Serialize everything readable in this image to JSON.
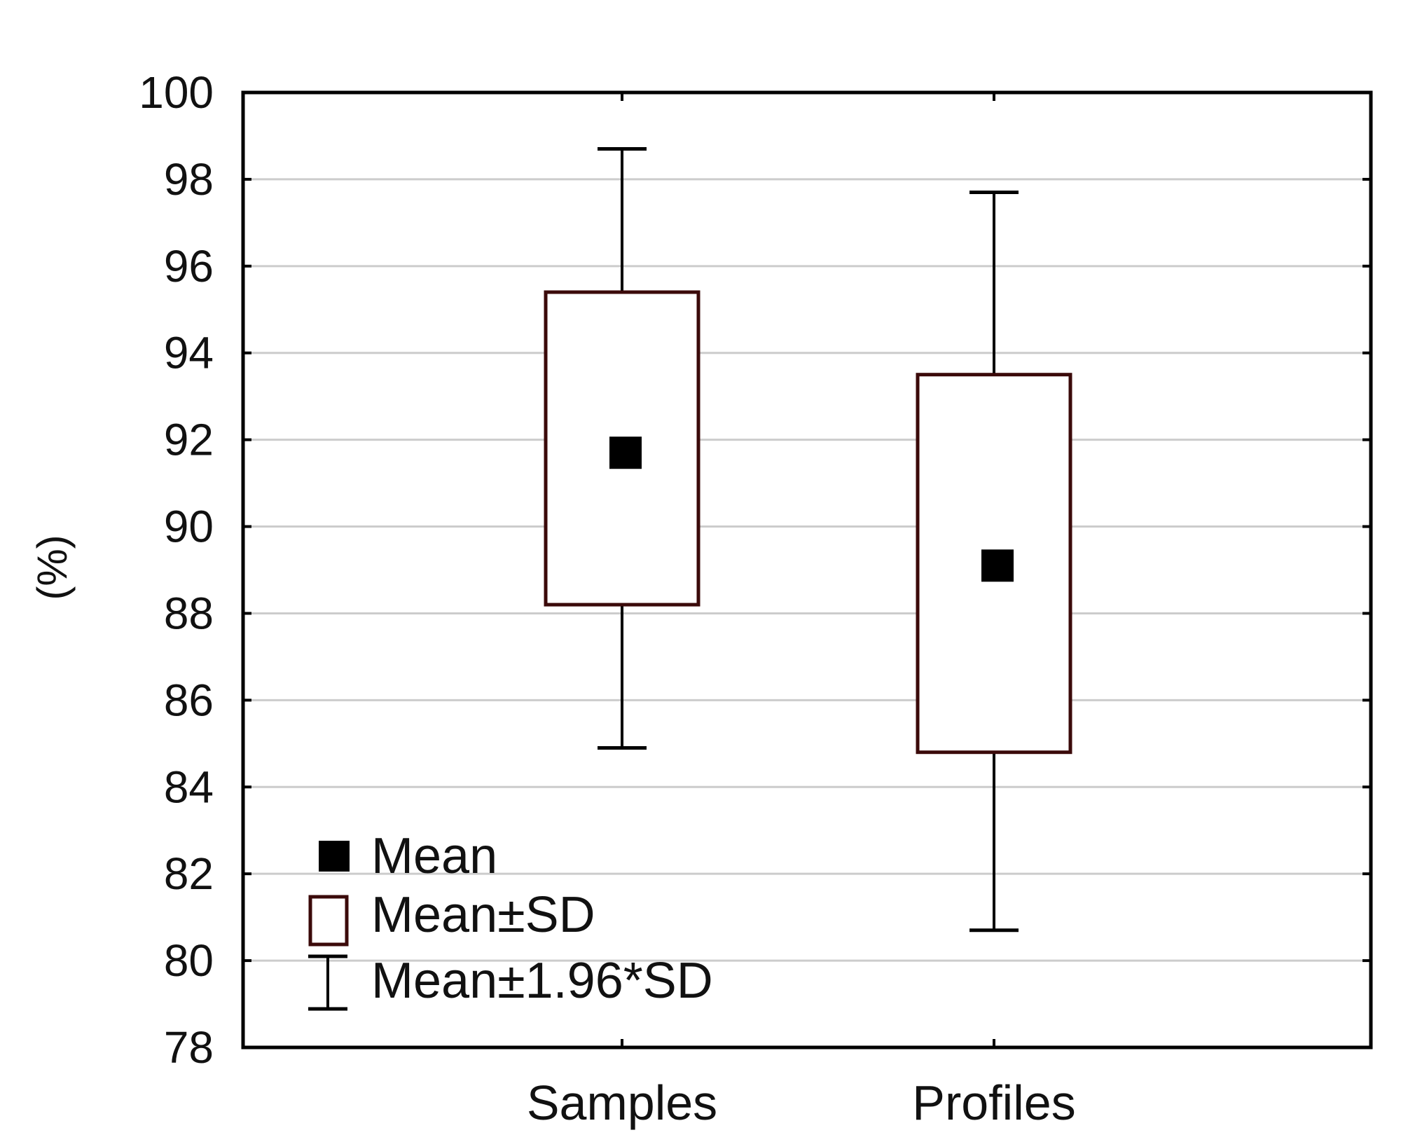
{
  "chart_data": {
    "type": "box",
    "title": "",
    "xlabel": "",
    "ylabel": "(%)",
    "ylim": [
      78,
      100
    ],
    "yticks": [
      78,
      80,
      82,
      84,
      86,
      88,
      90,
      92,
      94,
      96,
      98,
      100
    ],
    "grid": true,
    "legend_position": "bottom-left",
    "categories": [
      "Samples",
      "Profiles"
    ],
    "series": [
      {
        "name": "Samples",
        "mean": 91.7,
        "sd_low": 88.2,
        "sd_high": 95.4,
        "whisker_low": 84.9,
        "whisker_high": 98.7
      },
      {
        "name": "Profiles",
        "mean": 89.1,
        "sd_low": 84.8,
        "sd_high": 93.5,
        "whisker_low": 80.7,
        "whisker_high": 97.7
      }
    ],
    "legend": [
      {
        "symbol": "filled-square",
        "label": "Mean"
      },
      {
        "symbol": "open-box",
        "label": "Mean±SD"
      },
      {
        "symbol": "whisker",
        "label": "Mean±1.96*SD"
      }
    ],
    "colors": {
      "box_stroke": "#3b0a0a",
      "grid": "#cccccc",
      "mean": "#000000",
      "axis": "#000000"
    }
  }
}
